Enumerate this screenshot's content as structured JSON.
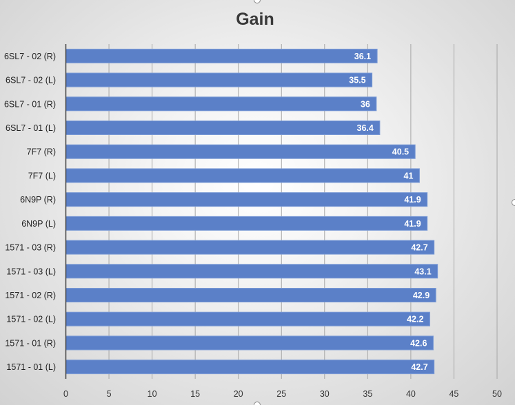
{
  "chart_data": {
    "type": "bar",
    "orientation": "horizontal",
    "title": "Gain",
    "xlabel": "",
    "ylabel": "",
    "categories": [
      "6SL7 - 02 (R)",
      "6SL7 - 02 (L)",
      "6SL7 - 01 (R)",
      "6SL7 - 01 (L)",
      "7F7 (R)",
      "7F7 (L)",
      "6N9P (R)",
      "6N9P (L)",
      "1571 - 03 (R)",
      "1571 - 03 (L)",
      "1571 - 02 (R)",
      "1571 - 02 (L)",
      "1571 - 01 (R)",
      "1571 - 01 (L)"
    ],
    "values": [
      36.1,
      35.5,
      36,
      36.4,
      40.5,
      41,
      41.9,
      41.9,
      42.7,
      43.1,
      42.9,
      42.2,
      42.6,
      42.7
    ],
    "data_labels": [
      "36.1",
      "35.5",
      "36",
      "36.4",
      "40.5",
      "41",
      "41.9",
      "41.9",
      "42.7",
      "43.1",
      "42.9",
      "42.2",
      "42.6",
      "42.7"
    ],
    "xlim": [
      0,
      50
    ],
    "x_ticks": [
      "0",
      "5",
      "10",
      "15",
      "20",
      "25",
      "30",
      "35",
      "40",
      "45",
      "50"
    ],
    "grid": "vertical",
    "legend": "none",
    "bar_color": "#5b80c8",
    "bar_edge_color": "#7a9ad6",
    "gridline_color": "#a6a6a6",
    "axis_color": "#404040",
    "label_color": "#ffffff"
  }
}
